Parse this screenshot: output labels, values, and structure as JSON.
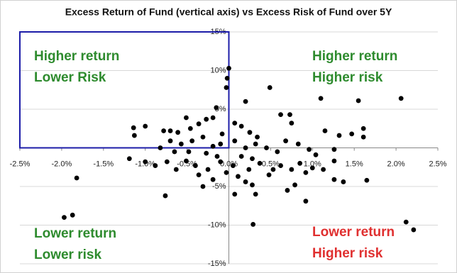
{
  "chart_data": {
    "type": "scatter",
    "title": "Excess Return of Fund (vertical axis) vs Excess Risk of Fund over 5Y",
    "xlim": [
      -2.5,
      2.5
    ],
    "ylim": [
      -15,
      15
    ],
    "xticks": [
      {
        "value": -2.5,
        "label": "-2.5%"
      },
      {
        "value": -2.0,
        "label": "-2.0%"
      },
      {
        "value": -1.5,
        "label": "-1.5%"
      },
      {
        "value": -1.0,
        "label": "-1.0%"
      },
      {
        "value": -0.5,
        "label": "-0.5%"
      },
      {
        "value": 0,
        "label": "0.0%"
      },
      {
        "value": 0.5,
        "label": "0.5%"
      },
      {
        "value": 1.0,
        "label": "1.0%"
      },
      {
        "value": 1.5,
        "label": "1.5%"
      },
      {
        "value": 2.0,
        "label": "2.0%"
      },
      {
        "value": 2.5,
        "label": "2.5%"
      }
    ],
    "yticks": [
      {
        "value": -15,
        "label": "-15%"
      },
      {
        "value": -10,
        "label": "-10%"
      },
      {
        "value": -5,
        "label": "-5%"
      },
      {
        "value": 5,
        "label": "5%"
      },
      {
        "value": 10,
        "label": "10%"
      },
      {
        "value": 15,
        "label": "15%"
      }
    ],
    "grid": true,
    "color": "#000000",
    "highlight_color": "#1c1ca8",
    "annotations": [
      {
        "lines": [
          "Higher return",
          "Lower Risk"
        ],
        "color": "#2e8b2e"
      },
      {
        "lines": [
          "Higher return",
          "Higher risk"
        ],
        "color": "#2e8b2e"
      },
      {
        "lines": [
          "Lower return",
          "Lower risk"
        ],
        "color": "#2e8b2e"
      },
      {
        "lines": [
          "Lower return",
          "Higher risk"
        ],
        "color": "#e03030"
      }
    ],
    "x": [
      0,
      -0.02,
      -0.03,
      0.49,
      0.2,
      -0.15,
      1.1,
      1.55,
      2.06,
      0.62,
      0.73,
      0.75,
      1.15,
      1.32,
      1.47,
      1.61,
      1.61,
      -1.14,
      -1.0,
      -1.13,
      -0.78,
      -0.7,
      -0.61,
      -0.46,
      -0.36,
      -0.27,
      -0.19,
      -0.51,
      0.07,
      0.15,
      0.25,
      0.34,
      -0.08,
      -0.82,
      -0.7,
      -0.57,
      -0.44,
      -0.31,
      -0.19,
      -0.1,
      0.07,
      0.2,
      0.32,
      0.45,
      0.58,
      0.68,
      0.83,
      0.96,
      1.04,
      1.26,
      -1.19,
      -1.0,
      -0.88,
      -0.74,
      -0.63,
      -0.51,
      -0.4,
      -0.36,
      -0.25,
      -0.19,
      -0.1,
      -0.03,
      0.05,
      0.11,
      0.2,
      0.28,
      0.24,
      0.37,
      0.48,
      0.53,
      0.62,
      0.75,
      0.85,
      0.92,
      1.0,
      1.13,
      1.26,
      1.37,
      1.26,
      1.65,
      0.7,
      0.79,
      0.92,
      0.32,
      -0.31,
      0.07,
      -0.76,
      -1.82,
      -1.87,
      -1.97,
      0.29,
      2.12,
      2.21,
      -0.48,
      -0.27,
      -0.14,
      0.15,
      0.28,
      -0.65
    ],
    "y": [
      10.3,
      9.0,
      7.8,
      7.8,
      6.0,
      5.2,
      6.4,
      6.1,
      6.4,
      4.3,
      4.3,
      3.2,
      2.2,
      1.6,
      1.8,
      2.5,
      1.4,
      2.6,
      2.8,
      1.6,
      2.2,
      2.2,
      2.0,
      2.5,
      3.1,
      3.7,
      3.9,
      3.9,
      3.2,
      2.8,
      2.0,
      1.4,
      1.8,
      0,
      0.9,
      0.5,
      0.9,
      1.4,
      0.2,
      0.5,
      0.9,
      0,
      0.5,
      0,
      -0.5,
      0.9,
      0.5,
      -0.2,
      -0.9,
      -0.2,
      -1.4,
      -1.8,
      -2.3,
      -1.8,
      -2.8,
      -1.7,
      -2.3,
      -3.5,
      -2.8,
      -4.1,
      -1.8,
      -3.2,
      -2.3,
      -3.7,
      -4.4,
      -4.8,
      -2.8,
      -2.0,
      -3.5,
      -2.8,
      -2.3,
      -2.8,
      -2.0,
      -3.2,
      -2.6,
      -2.8,
      -1.7,
      -4.4,
      -4.1,
      -4.2,
      -5.5,
      -4.8,
      -6.9,
      -6.0,
      -5.0,
      -6.0,
      -6.2,
      -3.9,
      -8.7,
      -9.0,
      -9.9,
      -9.6,
      -10.6,
      -0.5,
      -0.7,
      -1.1,
      -1.1,
      -1.4,
      -0.5
    ]
  }
}
